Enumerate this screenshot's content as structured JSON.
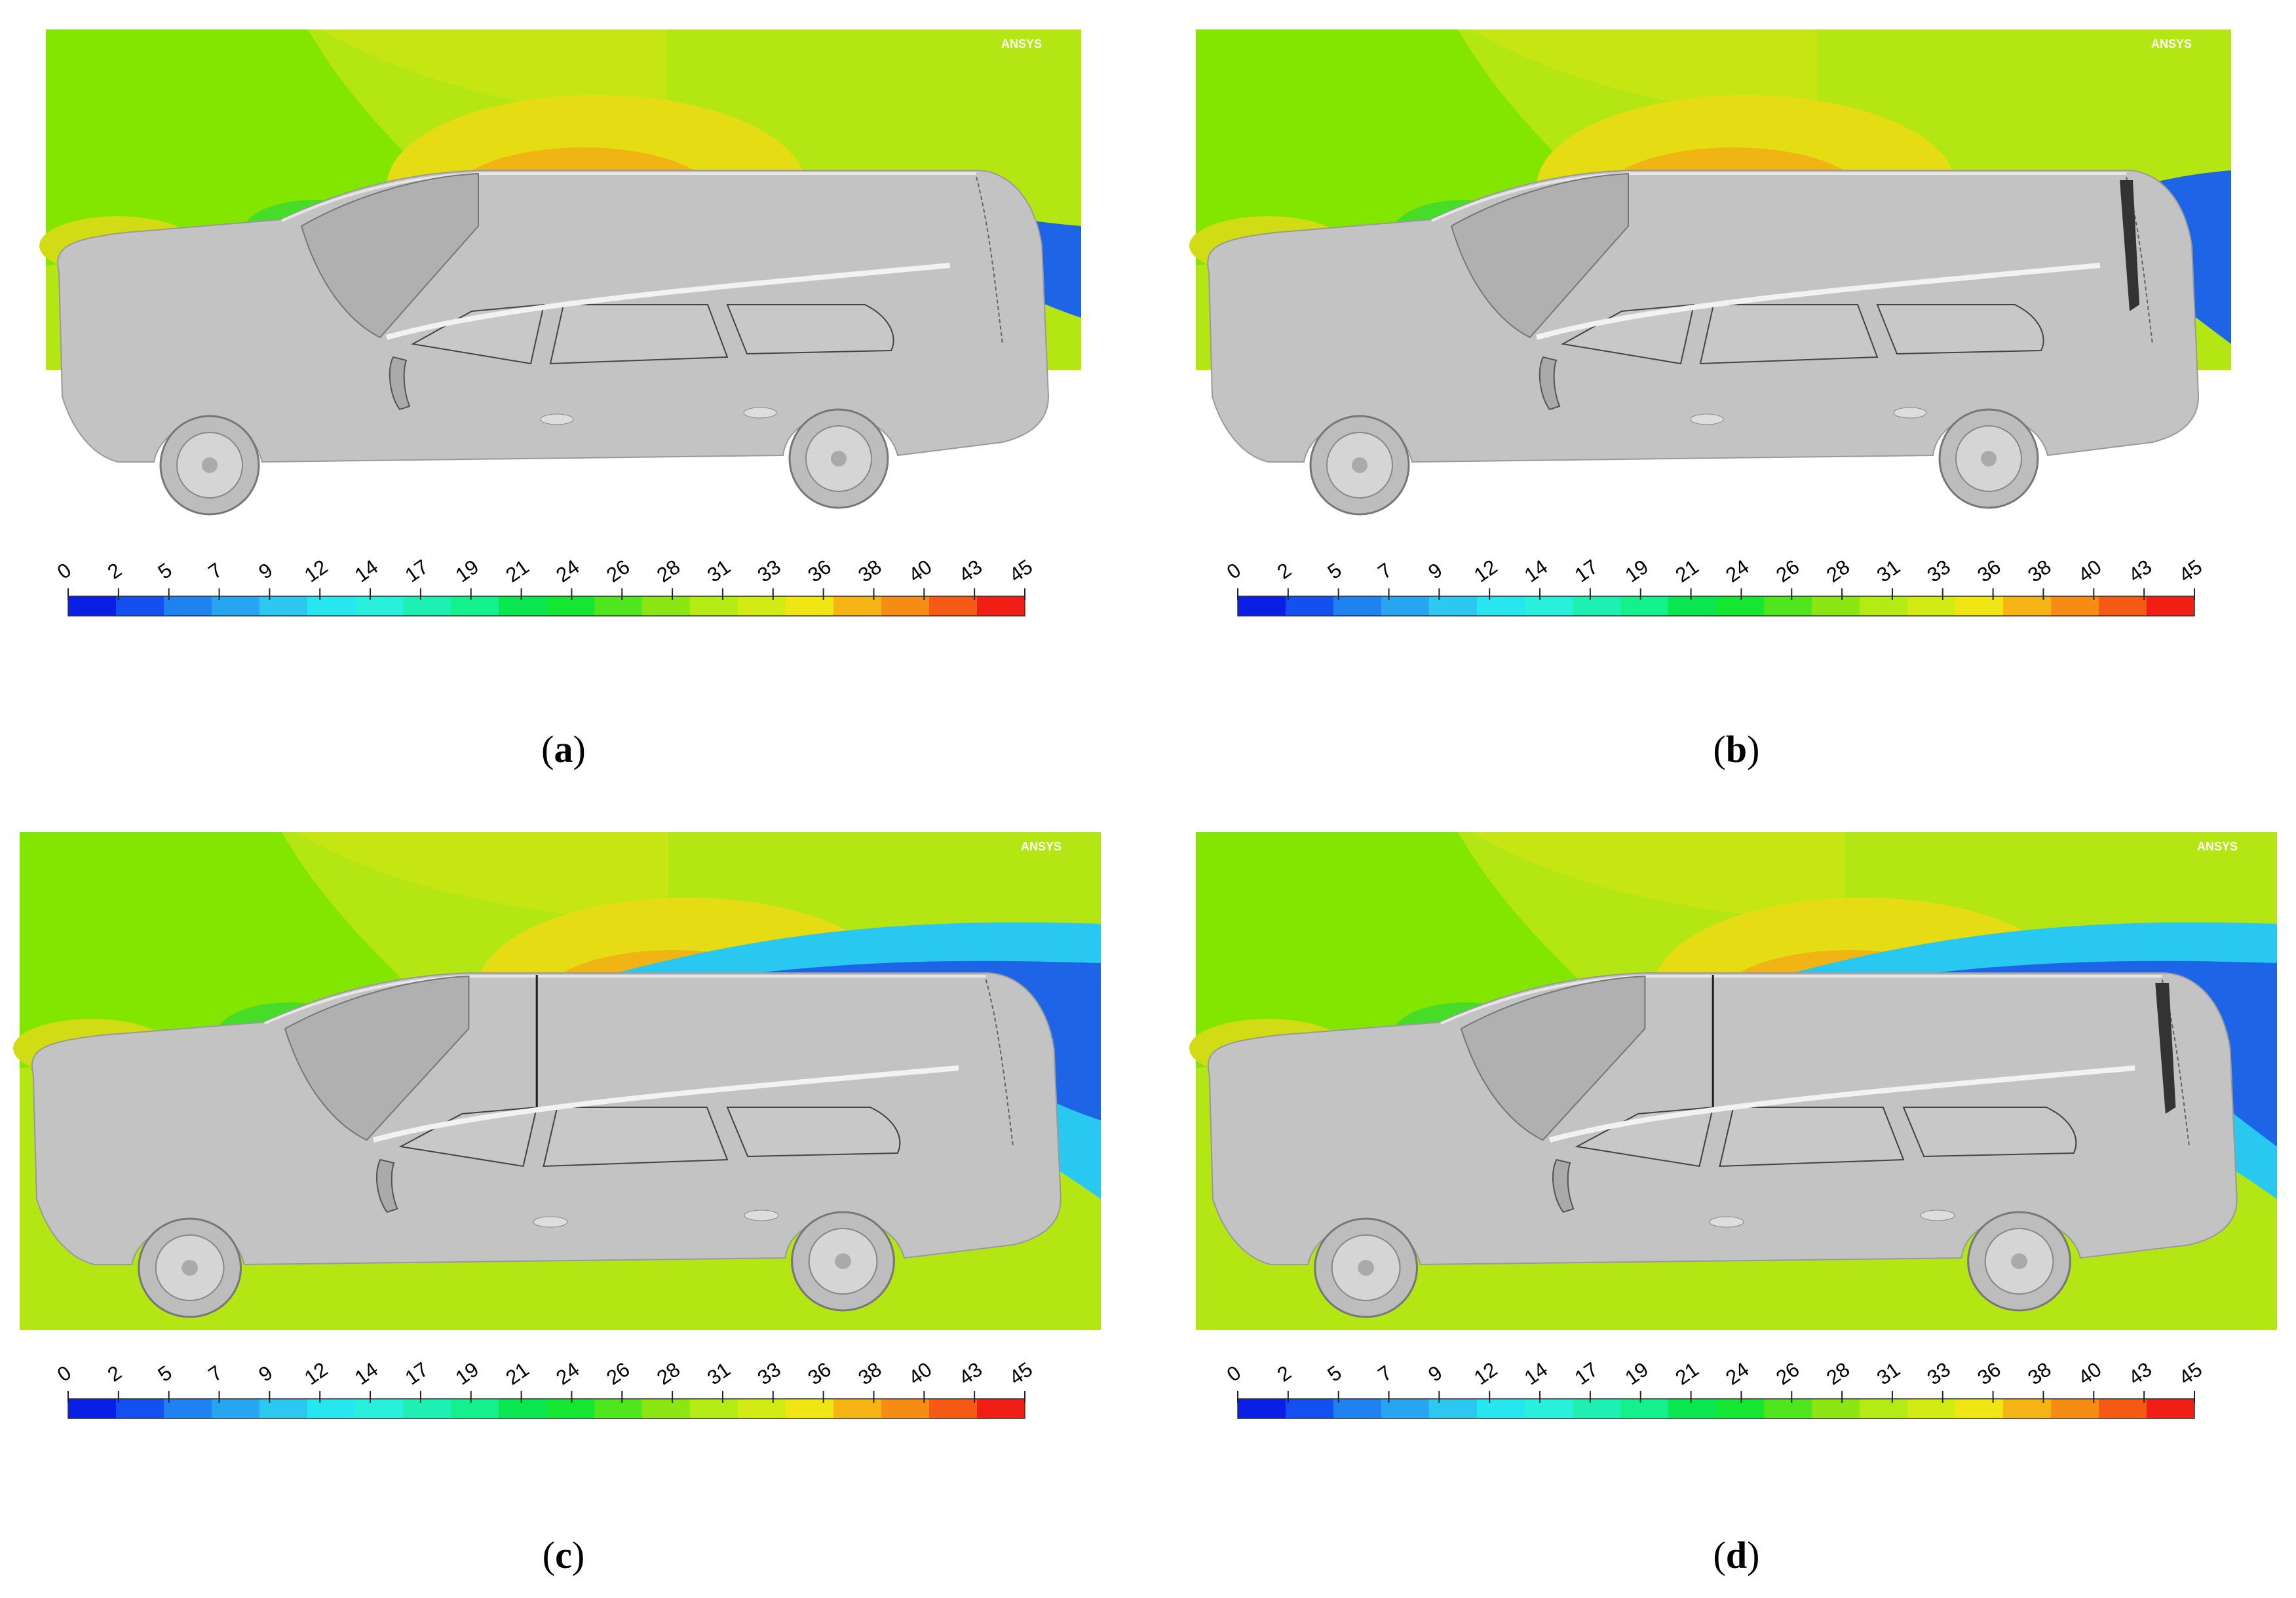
{
  "panels": [
    {
      "id": "a",
      "caption": "a",
      "spoiler": false,
      "roof_divider": false
    },
    {
      "id": "b",
      "caption": "b",
      "spoiler": true,
      "roof_divider": false
    },
    {
      "id": "c",
      "caption": "c",
      "spoiler": false,
      "roof_divider": true
    },
    {
      "id": "d",
      "caption": "d",
      "spoiler": true,
      "roof_divider": true
    }
  ],
  "colorbar": {
    "ticks": [
      "0",
      "2",
      "5",
      "7",
      "9",
      "12",
      "14",
      "17",
      "19",
      "21",
      "24",
      "26",
      "28",
      "31",
      "33",
      "36",
      "38",
      "40",
      "43",
      "45"
    ],
    "colors": [
      "#0a1ee6",
      "#1450f0",
      "#1e82f0",
      "#28a5f0",
      "#2dc8f0",
      "#28e6f0",
      "#28f0dc",
      "#1ef0b4",
      "#14f08c",
      "#0ae650",
      "#14e632",
      "#50e61e",
      "#8ce614",
      "#b4eb14",
      "#d2eb14",
      "#f0e614",
      "#f5b414",
      "#f58c14",
      "#f55a14",
      "#f01e14"
    ]
  },
  "watermark": "ANSYS",
  "colors": {
    "car_body": "#c3c3c3",
    "field_top": "#b4e614",
    "field_green": "#82e600",
    "wake_blue": "#1e64e6"
  }
}
